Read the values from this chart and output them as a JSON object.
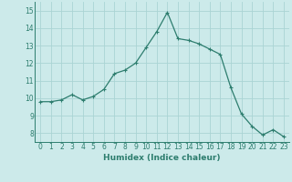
{
  "x": [
    0,
    1,
    2,
    3,
    4,
    5,
    6,
    7,
    8,
    9,
    10,
    11,
    12,
    13,
    14,
    15,
    16,
    17,
    18,
    19,
    20,
    21,
    22,
    23
  ],
  "y": [
    9.8,
    9.8,
    9.9,
    10.2,
    9.9,
    10.1,
    10.5,
    11.4,
    11.6,
    12.0,
    12.9,
    13.8,
    14.9,
    13.4,
    13.3,
    13.1,
    12.8,
    12.5,
    10.6,
    9.1,
    8.4,
    7.9,
    8.2,
    7.8
  ],
  "line_color": "#2d7d6e",
  "marker": "+",
  "marker_size": 3,
  "marker_linewidth": 0.8,
  "xlabel": "Humidex (Indice chaleur)",
  "ylim": [
    7.5,
    15.5
  ],
  "xlim": [
    -0.5,
    23.5
  ],
  "yticks": [
    8,
    9,
    10,
    11,
    12,
    13,
    14,
    15
  ],
  "xticks": [
    0,
    1,
    2,
    3,
    4,
    5,
    6,
    7,
    8,
    9,
    10,
    11,
    12,
    13,
    14,
    15,
    16,
    17,
    18,
    19,
    20,
    21,
    22,
    23
  ],
  "bg_color": "#cceaea",
  "grid_color": "#aad4d4",
  "line_width": 0.9,
  "tick_fontsize": 5.5,
  "xlabel_fontsize": 6.5
}
